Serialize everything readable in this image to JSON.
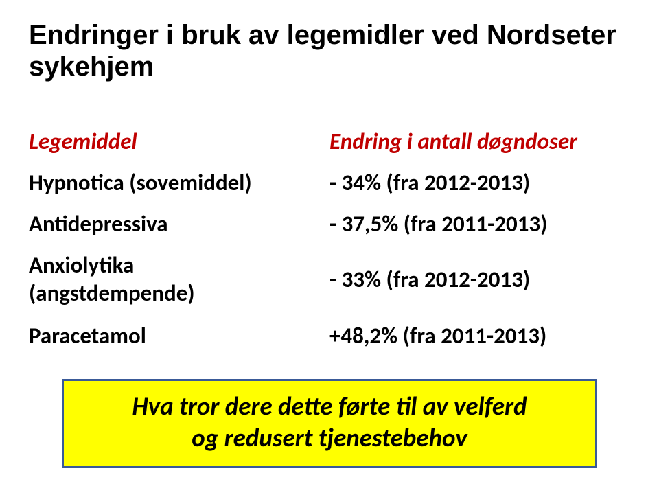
{
  "title_line1": "Endringer i bruk av legemidler ved Nordseter",
  "title_line2": "sykehjem",
  "table": {
    "header": {
      "left": "Legemiddel",
      "right": "Endring i antall døgndoser"
    },
    "rows": [
      {
        "left": "Hypnotica (sovemiddel)",
        "right": "- 34% (fra 2012-2013)"
      },
      {
        "left": "Antidepressiva",
        "right": "- 37,5% (fra 2011-2013)"
      },
      {
        "left_line1": "Anxiolytika",
        "left_line2": "(angstdempende)",
        "right": "- 33% (fra 2012-2013)"
      },
      {
        "left": "Paracetamol",
        "right": "+48,2% (fra 2011-2013)"
      }
    ]
  },
  "callout": {
    "line1": "Hva tror dere dette førte til av velferd",
    "line2": "og redusert tjenestebehov",
    "bg": "#ffff00",
    "border": "#3a5a98"
  },
  "colors": {
    "header_text": "#c00000",
    "body_text": "#000000",
    "background": "#ffffff"
  },
  "fonts": {
    "title_size_pt": 30,
    "body_size_pt": 25,
    "callout_size_pt": 28
  }
}
